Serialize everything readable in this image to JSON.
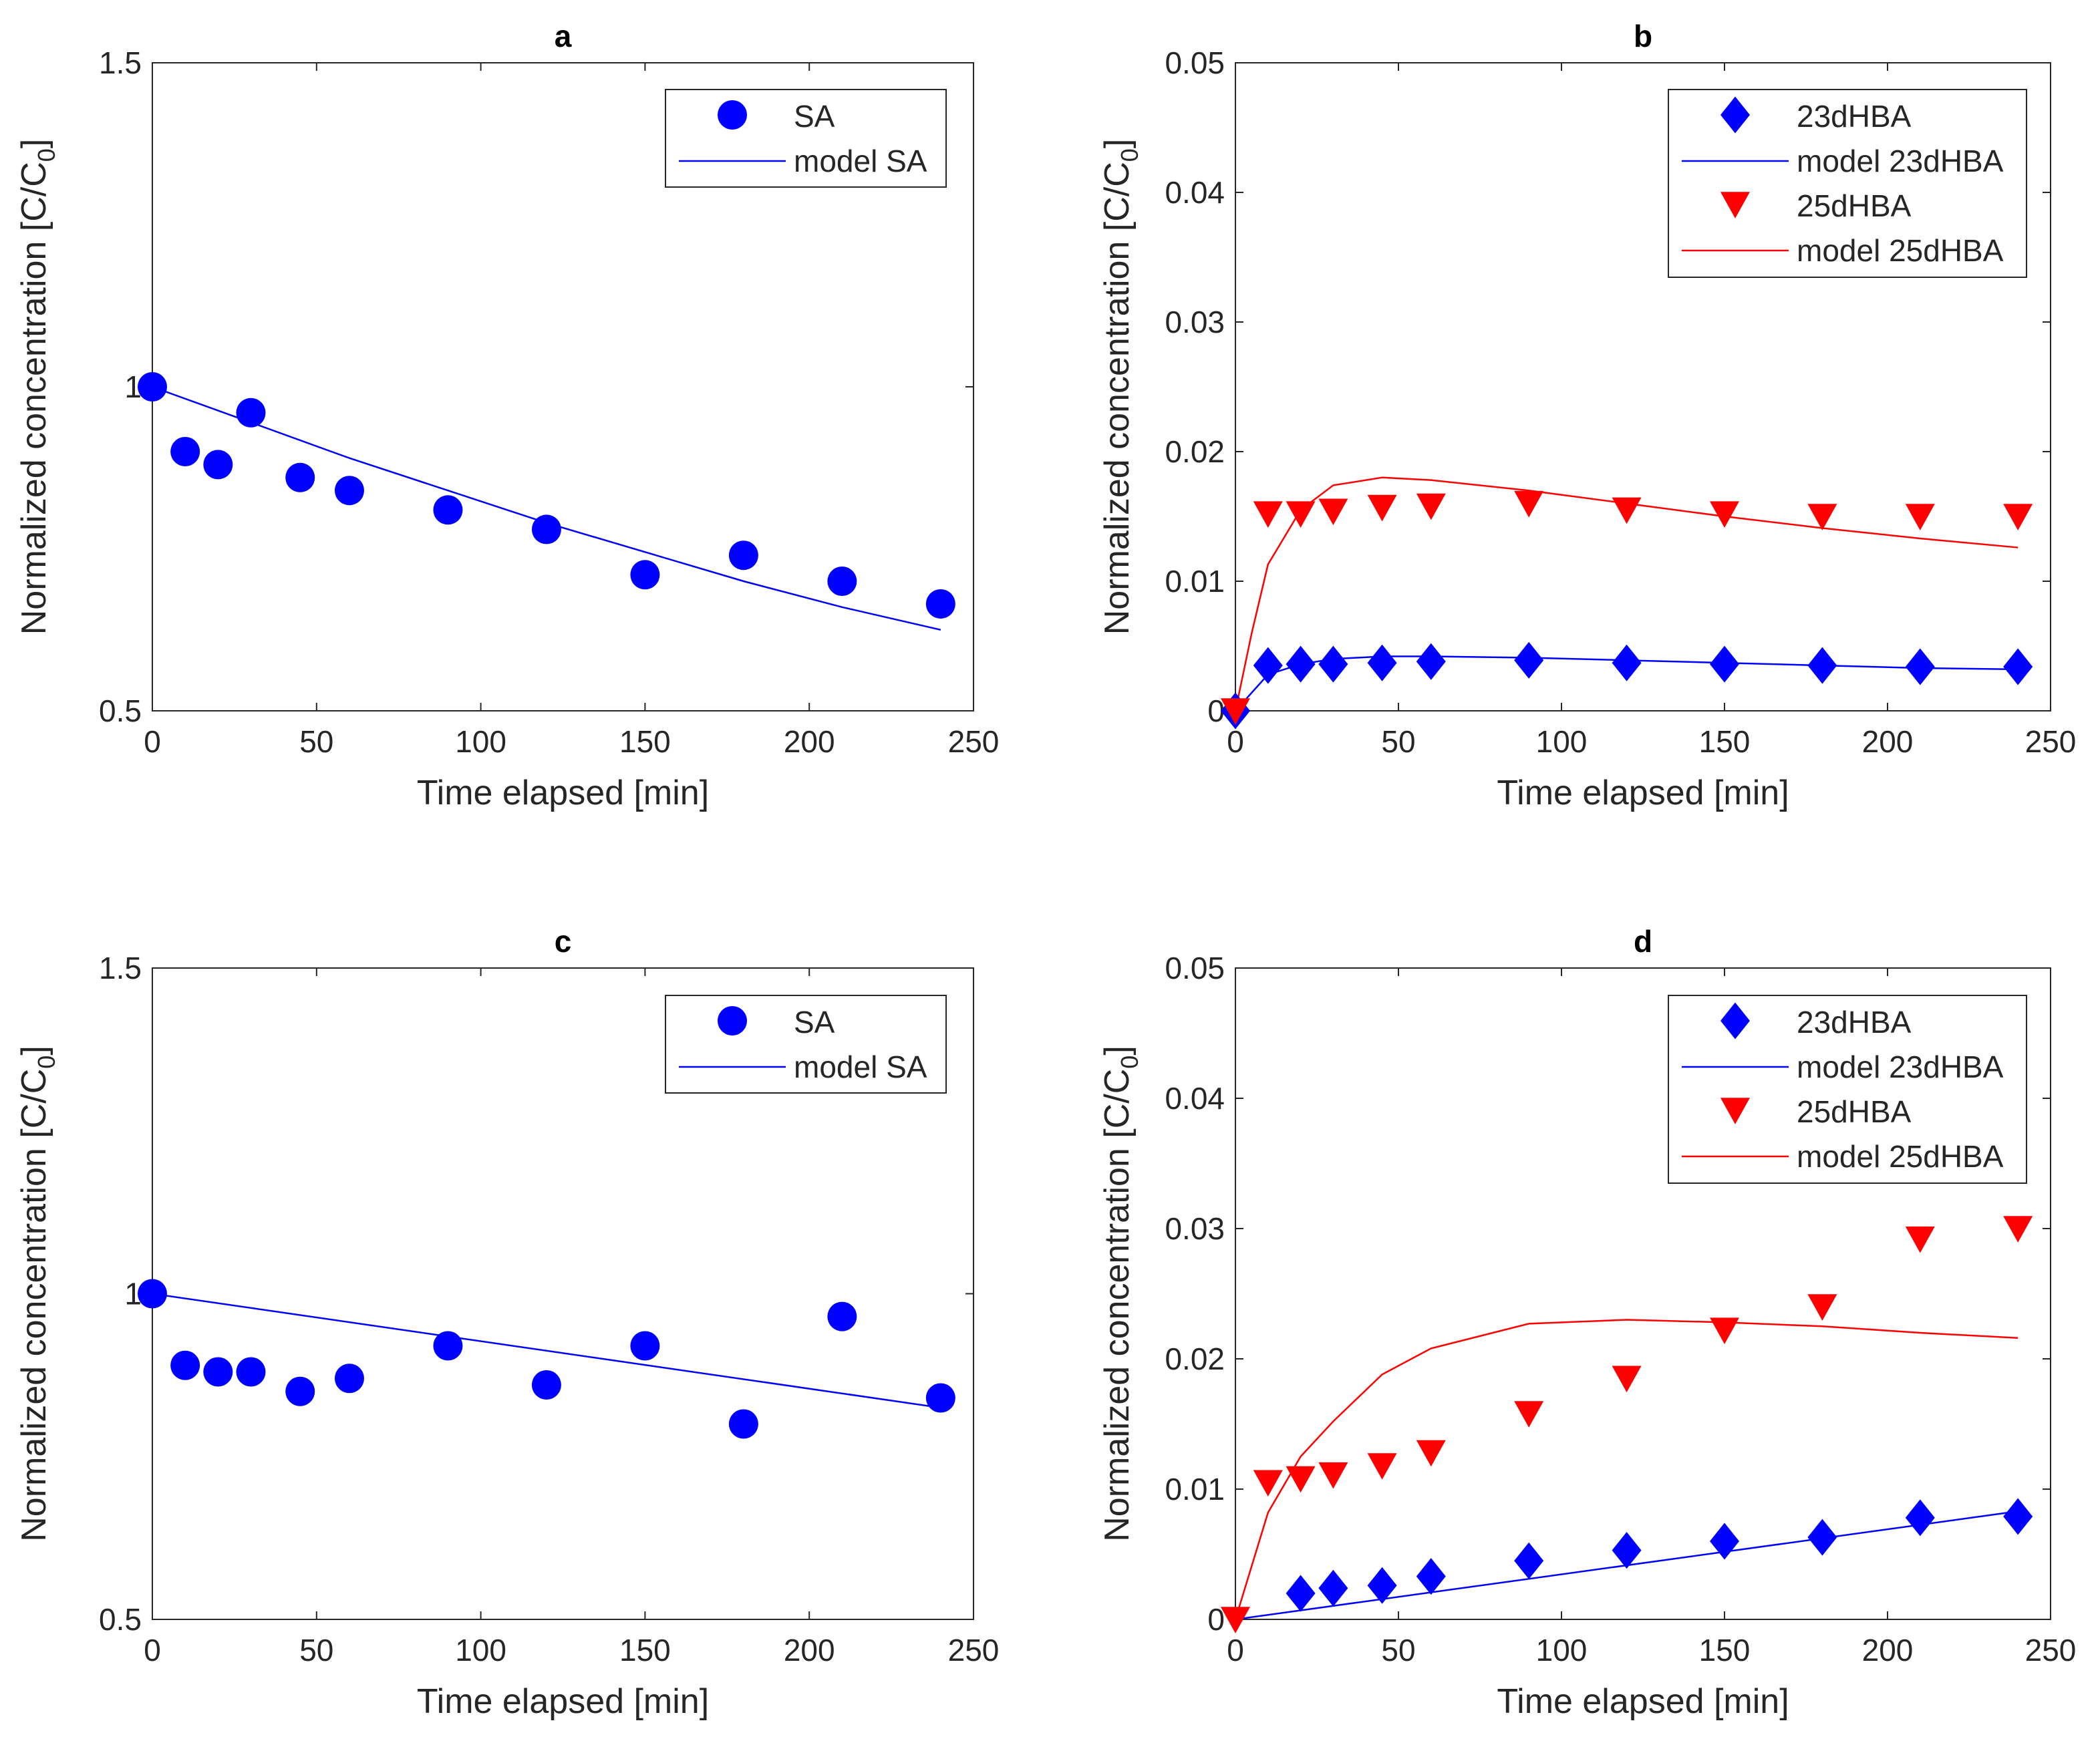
{
  "chart_data": [
    {
      "panel": "a",
      "type": "scatter+line",
      "title": "a",
      "xlabel": "Time elapsed [min]",
      "ylabel": "Normalized concentration [C/C",
      "ylabel_sub": "0",
      "ylabel_close": "]",
      "xlim": [
        0,
        250
      ],
      "ylim": [
        0.5,
        1.5
      ],
      "xticks": [
        0,
        50,
        100,
        150,
        200,
        250
      ],
      "yticks": [
        0.5,
        1,
        1.5
      ],
      "xtick_labels": [
        "0",
        "50",
        "100",
        "150",
        "200",
        "250"
      ],
      "ytick_labels": [
        "0.5",
        "1",
        "1.5"
      ],
      "legend_position": "top-right",
      "series": [
        {
          "name": "SA",
          "kind": "scatter",
          "marker": "circle",
          "color": "#0000ff",
          "x": [
            0,
            10,
            20,
            30,
            45,
            60,
            90,
            120,
            150,
            180,
            210,
            240
          ],
          "y": [
            1.0,
            0.9,
            0.88,
            0.96,
            0.86,
            0.84,
            0.81,
            0.78,
            0.71,
            0.74,
            0.7,
            0.665
          ]
        },
        {
          "name": "model SA",
          "kind": "line",
          "color": "#0000ff",
          "x": [
            0,
            30,
            60,
            90,
            120,
            150,
            180,
            210,
            240
          ],
          "y": [
            1.0,
            0.945,
            0.89,
            0.84,
            0.79,
            0.745,
            0.7,
            0.66,
            0.625
          ]
        }
      ]
    },
    {
      "panel": "b",
      "type": "scatter+line",
      "title": "b",
      "xlabel": "Time elapsed [min]",
      "ylabel": "Normalized concentration [C/C",
      "ylabel_sub": "0",
      "ylabel_close": "]",
      "xlim": [
        0,
        250
      ],
      "ylim": [
        0,
        0.05
      ],
      "xticks": [
        0,
        50,
        100,
        150,
        200,
        250
      ],
      "yticks": [
        0,
        0.01,
        0.02,
        0.03,
        0.04,
        0.05
      ],
      "xtick_labels": [
        "0",
        "50",
        "100",
        "150",
        "200",
        "250"
      ],
      "ytick_labels": [
        "0",
        "0.01",
        "0.02",
        "0.03",
        "0.04",
        "0.05"
      ],
      "legend_position": "top-right",
      "series": [
        {
          "name": "23dHBA",
          "kind": "scatter",
          "marker": "diamond",
          "color": "#0000ff",
          "x": [
            0,
            10,
            20,
            30,
            45,
            60,
            90,
            120,
            150,
            180,
            210,
            240
          ],
          "y": [
            0,
            0.0035,
            0.0036,
            0.0036,
            0.0037,
            0.0038,
            0.0039,
            0.0037,
            0.0036,
            0.0035,
            0.0034,
            0.0034
          ]
        },
        {
          "name": "model 23dHBA",
          "kind": "line",
          "color": "#0000ff",
          "x": [
            0,
            10,
            20,
            30,
            45,
            60,
            90,
            120,
            150,
            180,
            210,
            240
          ],
          "y": [
            0,
            0.0028,
            0.0036,
            0.004,
            0.0042,
            0.0042,
            0.0041,
            0.0039,
            0.0037,
            0.0035,
            0.0033,
            0.0032
          ]
        },
        {
          "name": "25dHBA",
          "kind": "scatter",
          "marker": "triangle-down",
          "color": "#ff0000",
          "x": [
            0,
            10,
            20,
            30,
            45,
            60,
            90,
            120,
            150,
            180,
            210,
            240
          ],
          "y": [
            0,
            0.0152,
            0.0152,
            0.0154,
            0.0157,
            0.0158,
            0.016,
            0.0155,
            0.0152,
            0.015,
            0.015,
            0.015
          ]
        },
        {
          "name": "model 25dHBA",
          "kind": "line",
          "color": "#ff0000",
          "x": [
            0,
            5,
            10,
            20,
            30,
            45,
            60,
            90,
            120,
            150,
            180,
            210,
            240
          ],
          "y": [
            0,
            0.006,
            0.0113,
            0.0155,
            0.0174,
            0.018,
            0.0178,
            0.017,
            0.016,
            0.015,
            0.0141,
            0.0133,
            0.0126
          ]
        }
      ]
    },
    {
      "panel": "c",
      "type": "scatter+line",
      "title": "c",
      "xlabel": "Time elapsed [min]",
      "ylabel": "Normalized concentration [C/C",
      "ylabel_sub": "0",
      "ylabel_close": "]",
      "xlim": [
        0,
        250
      ],
      "ylim": [
        0.5,
        1.5
      ],
      "xticks": [
        0,
        50,
        100,
        150,
        200,
        250
      ],
      "yticks": [
        0.5,
        1,
        1.5
      ],
      "xtick_labels": [
        "0",
        "50",
        "100",
        "150",
        "200",
        "250"
      ],
      "ytick_labels": [
        "0.5",
        "1",
        "1.5"
      ],
      "legend_position": "top-right",
      "series": [
        {
          "name": "SA",
          "kind": "scatter",
          "marker": "circle",
          "color": "#0000ff",
          "x": [
            0,
            10,
            20,
            30,
            45,
            60,
            90,
            120,
            150,
            180,
            210,
            240
          ],
          "y": [
            1.0,
            0.89,
            0.88,
            0.88,
            0.85,
            0.87,
            0.92,
            0.86,
            0.92,
            0.8,
            0.965,
            0.84
          ]
        },
        {
          "name": "model SA",
          "kind": "line",
          "color": "#0000ff",
          "x": [
            0,
            240
          ],
          "y": [
            1.0,
            0.825
          ]
        }
      ]
    },
    {
      "panel": "d",
      "type": "scatter+line",
      "title": "d",
      "xlabel": "Time elapsed [min]",
      "ylabel": "Normalized concentration [C/C",
      "ylabel_sub": "0",
      "ylabel_close": "]",
      "xlim": [
        0,
        250
      ],
      "ylim": [
        0,
        0.05
      ],
      "xticks": [
        0,
        50,
        100,
        150,
        200,
        250
      ],
      "yticks": [
        0,
        0.01,
        0.02,
        0.03,
        0.04,
        0.05
      ],
      "xtick_labels": [
        "0",
        "50",
        "100",
        "150",
        "200",
        "250"
      ],
      "ytick_labels": [
        "0",
        "0.01",
        "0.02",
        "0.03",
        "0.04",
        "0.05"
      ],
      "legend_position": "top-right",
      "series": [
        {
          "name": "23dHBA",
          "kind": "scatter",
          "marker": "diamond",
          "color": "#0000ff",
          "x": [
            20,
            30,
            45,
            60,
            90,
            120,
            150,
            180,
            210,
            240
          ],
          "y": [
            0.002,
            0.0024,
            0.0026,
            0.0033,
            0.0045,
            0.0053,
            0.006,
            0.0063,
            0.0078,
            0.0079
          ]
        },
        {
          "name": "model 23dHBA",
          "kind": "line",
          "color": "#0000ff",
          "x": [
            0,
            240
          ],
          "y": [
            0,
            0.0083
          ]
        },
        {
          "name": "25dHBA",
          "kind": "scatter",
          "marker": "triangle-down",
          "color": "#ff0000",
          "x": [
            0,
            10,
            20,
            30,
            45,
            60,
            90,
            120,
            150,
            180,
            210,
            240
          ],
          "y": [
            0,
            0.0105,
            0.0108,
            0.0111,
            0.0118,
            0.0128,
            0.0158,
            0.0185,
            0.0222,
            0.024,
            0.0292,
            0.03
          ]
        },
        {
          "name": "model 25dHBA",
          "kind": "line",
          "color": "#ff0000",
          "x": [
            0,
            10,
            20,
            30,
            45,
            60,
            90,
            120,
            150,
            180,
            210,
            240
          ],
          "y": [
            0,
            0.0082,
            0.0125,
            0.0152,
            0.0188,
            0.0208,
            0.0227,
            0.023,
            0.0228,
            0.0225,
            0.022,
            0.0216
          ]
        }
      ]
    }
  ],
  "colors": {
    "axis": "#262626",
    "blue": "#0000ff",
    "red": "#ff0000",
    "background": "#ffffff"
  }
}
